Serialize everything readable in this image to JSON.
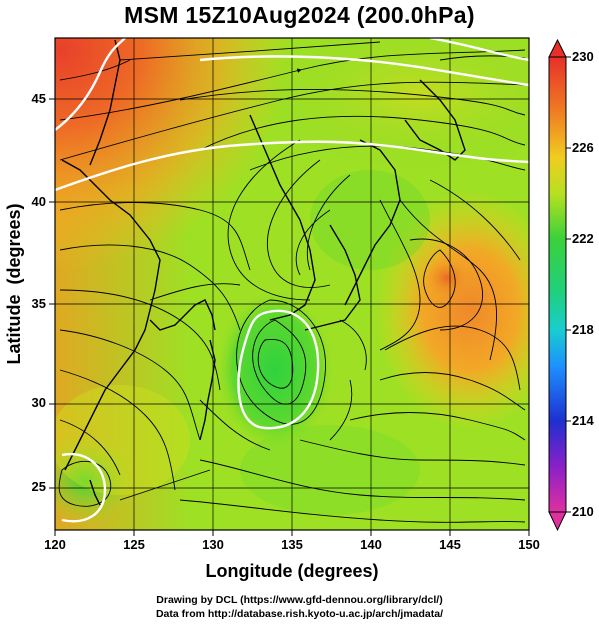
{
  "title": "MSM 15Z10Aug2024 (200.0hPa)",
  "x_axis": {
    "label": "Longitude (degrees)",
    "ticks": [
      "120",
      "125",
      "130",
      "135",
      "140",
      "145",
      "150"
    ]
  },
  "y_axis": {
    "label": "Latitude  (degrees)",
    "ticks": [
      "25",
      "30",
      "35",
      "40",
      "45"
    ]
  },
  "colorbar": {
    "ticks": [
      "230",
      "226",
      "222",
      "218",
      "214",
      "210"
    ],
    "colors": [
      "#e8308a",
      "#8a20c8",
      "#1f2fd0",
      "#1e90ff",
      "#18d0c0",
      "#1fd060",
      "#9ae020",
      "#f0d020",
      "#f08020",
      "#e83a2a"
    ]
  },
  "credits": {
    "line1": "Drawing by DCL (https://www.gfd-dennou.org/library/dcl/)",
    "line2": "Data from http://database.rish.kyoto-u.ac.jp/arch/jmadata/"
  },
  "map_colors": {
    "green": "#3ad23a",
    "yellow_green": "#a8e022",
    "yellow": "#ecd81e",
    "orange": "#f09a22",
    "red": "#ea5226",
    "streamline": "#000000",
    "contour": "#ffffff"
  }
}
